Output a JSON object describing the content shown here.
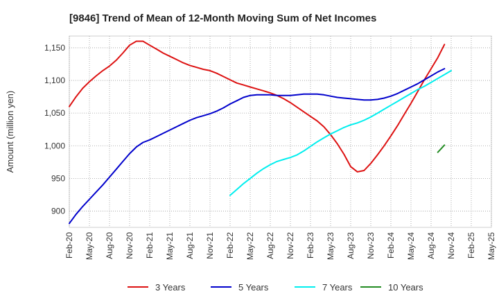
{
  "chart_data": {
    "type": "line",
    "title": "[9846]  Trend of Mean of 12-Month Moving Sum of Net Incomes",
    "ylabel": "Amount (million yen)",
    "xlabel": "",
    "x_ticks": [
      "Feb-20",
      "May-20",
      "Aug-20",
      "Nov-20",
      "Feb-21",
      "May-21",
      "Aug-21",
      "Nov-21",
      "Feb-22",
      "May-22",
      "Aug-22",
      "Nov-22",
      "Feb-23",
      "May-23",
      "Aug-23",
      "Nov-23",
      "Feb-24",
      "May-24",
      "Aug-24",
      "Nov-24",
      "Feb-25",
      "May-25"
    ],
    "y_ticks": [
      900,
      950,
      1000,
      1050,
      1100,
      1150
    ],
    "y_tick_labels": [
      "900",
      "950",
      "1,000",
      "1,050",
      "1,100",
      "1,150"
    ],
    "ylim": [
      875,
      1168
    ],
    "grid": true,
    "legend_position": "bottom",
    "series": [
      {
        "name": "3 Years",
        "color": "#dd1111",
        "start_index": 0,
        "values": [
          1060,
          1075,
          1088,
          1098,
          1107,
          1115,
          1122,
          1131,
          1142,
          1154,
          1160,
          1160,
          1154,
          1148,
          1142,
          1137,
          1132,
          1127,
          1123,
          1120,
          1117,
          1115,
          1111,
          1106,
          1101,
          1096,
          1093,
          1090,
          1087,
          1084,
          1081,
          1077,
          1072,
          1066,
          1059,
          1052,
          1045,
          1038,
          1029,
          1017,
          1003,
          987,
          968,
          960,
          962,
          973,
          986,
          1000,
          1015,
          1031,
          1048,
          1065,
          1083,
          1101,
          1118,
          1135,
          1155
        ]
      },
      {
        "name": "5 Years",
        "color": "#0000cc",
        "start_index": 0,
        "values": [
          881,
          895,
          907,
          918,
          929,
          940,
          952,
          964,
          976,
          988,
          998,
          1005,
          1009,
          1014,
          1019,
          1024,
          1029,
          1034,
          1039,
          1043,
          1046,
          1049,
          1053,
          1058,
          1064,
          1069,
          1074,
          1077,
          1078,
          1078,
          1078,
          1077,
          1077,
          1077,
          1078,
          1079,
          1079,
          1079,
          1078,
          1076,
          1074,
          1073,
          1072,
          1071,
          1070,
          1070,
          1071,
          1073,
          1076,
          1080,
          1085,
          1090,
          1095,
          1101,
          1107,
          1113,
          1118
        ]
      },
      {
        "name": "7 Years",
        "color": "#00eeee",
        "start_index": 24,
        "values": [
          924,
          933,
          942,
          950,
          958,
          965,
          971,
          976,
          979,
          982,
          986,
          992,
          999,
          1006,
          1012,
          1018,
          1023,
          1028,
          1032,
          1035,
          1039,
          1044,
          1050,
          1056,
          1062,
          1068,
          1074,
          1080,
          1086,
          1091,
          1097,
          1103,
          1109,
          1115
        ]
      },
      {
        "name": "10 Years",
        "color": "#228b22",
        "start_index": 55,
        "values": [
          990,
          1001
        ]
      }
    ]
  }
}
